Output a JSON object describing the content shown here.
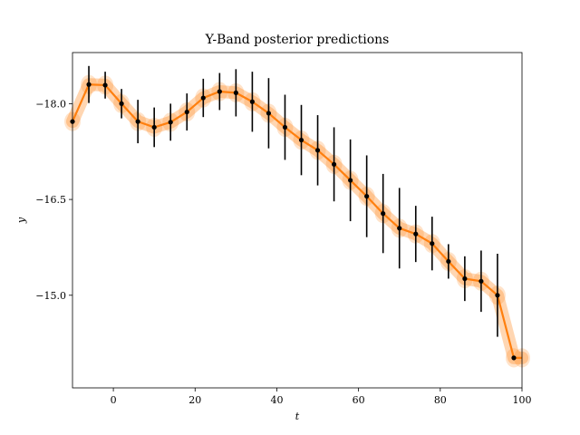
{
  "chart_data": {
    "type": "line",
    "title": "Y-Band posterior predictions",
    "xlabel": "t",
    "ylabel": "y",
    "xlim": [
      -10,
      100
    ],
    "ylim": [
      -13.55,
      -18.8
    ],
    "y_inverted": true,
    "grid": false,
    "x_ticks": [
      0,
      20,
      40,
      60,
      80,
      100
    ],
    "x_tick_labels": [
      "0",
      "20",
      "40",
      "60",
      "80",
      "100"
    ],
    "y_ticks": [
      -18.0,
      -16.5,
      -15.0
    ],
    "y_tick_labels": [
      "−18.0",
      "−16.5",
      "−15.0"
    ],
    "colors": {
      "prediction_line": "#ff7f0e",
      "prediction_band": "#ff7f0e",
      "observations": "#000000"
    },
    "series": [
      {
        "kind": "observations",
        "x": [
          -10,
          -6,
          -2,
          2,
          6,
          10,
          14,
          18,
          22,
          26,
          30,
          34,
          38,
          42,
          46,
          50,
          54,
          58,
          62,
          66,
          70,
          74,
          78,
          82,
          86,
          90,
          94,
          98
        ],
        "y": [
          -17.72,
          -18.3,
          -18.29,
          -18.0,
          -17.72,
          -17.63,
          -17.71,
          -17.87,
          -18.09,
          -18.19,
          -18.17,
          -18.03,
          -17.85,
          -17.63,
          -17.43,
          -17.27,
          -17.05,
          -16.8,
          -16.55,
          -16.28,
          -16.05,
          -15.96,
          -15.81,
          -15.53,
          -15.26,
          -15.22,
          -15.0,
          -14.02
        ],
        "yerr": [
          0,
          0.29,
          0.21,
          0.23,
          0.34,
          0.31,
          0.29,
          0.29,
          0.3,
          0.29,
          0.37,
          0.47,
          0.55,
          0.51,
          0.55,
          0.55,
          0.58,
          0.64,
          0.64,
          0.62,
          0.63,
          0.44,
          0.42,
          0.27,
          0.35,
          0.48,
          0.65,
          0
        ]
      },
      {
        "kind": "posterior_mean",
        "x": [
          -10,
          -6,
          -2,
          2,
          6,
          10,
          14,
          18,
          22,
          26,
          30,
          34,
          38,
          42,
          46,
          50,
          54,
          58,
          62,
          66,
          70,
          74,
          78,
          82,
          86,
          90,
          94,
          98,
          100
        ],
        "y": [
          -17.72,
          -18.3,
          -18.29,
          -18.0,
          -17.72,
          -17.63,
          -17.71,
          -17.87,
          -18.09,
          -18.19,
          -18.17,
          -18.03,
          -17.85,
          -17.63,
          -17.43,
          -17.27,
          -17.05,
          -16.8,
          -16.55,
          -16.28,
          -16.05,
          -15.96,
          -15.81,
          -15.53,
          -15.26,
          -15.22,
          -15.0,
          -14.02,
          -14.02
        ],
        "band": 0.1
      }
    ]
  }
}
